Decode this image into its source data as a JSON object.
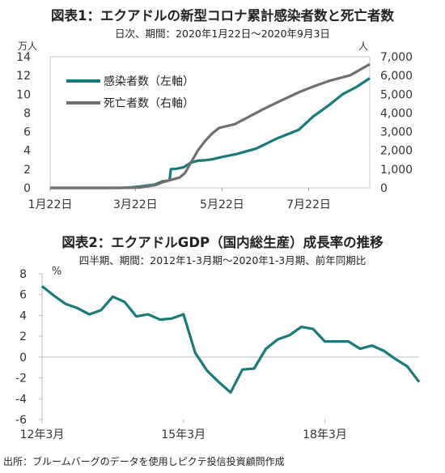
{
  "chart_data": [
    {
      "type": "line",
      "title": "図表1：エクアドルの新型コロナ累計感染者数と死亡者数",
      "subtitle": "日次、期間：2020年1月22日～2020年9月3日",
      "y_unit_left": "万人",
      "y_unit_right": "人",
      "ylim_left": [
        0,
        14
      ],
      "ylim_right": [
        0,
        7000
      ],
      "yticks_left": [
        "0",
        "2",
        "4",
        "6",
        "8",
        "10",
        "12",
        "14"
      ],
      "yticks_right": [
        "0",
        "1,000",
        "2,000",
        "3,000",
        "4,000",
        "5,000",
        "6,000",
        "7,000"
      ],
      "x_range": [
        "2020-01-22",
        "2020-09-03"
      ],
      "xticks": [
        {
          "date": "2020-01-22",
          "label": "1月22日"
        },
        {
          "date": "2020-03-22",
          "label": "3月22日"
        },
        {
          "date": "2020-05-22",
          "label": "5月22日"
        },
        {
          "date": "2020-07-22",
          "label": "7月22日"
        }
      ],
      "legend_position": "top-left",
      "series": [
        {
          "name": "感染者数（左軸）",
          "axis": "left",
          "color": "#1a7a7a",
          "points": [
            [
              "2020-01-22",
              0
            ],
            [
              "2020-03-01",
              0
            ],
            [
              "2020-03-15",
              0.01
            ],
            [
              "2020-03-25",
              0.15
            ],
            [
              "2020-04-05",
              0.37
            ],
            [
              "2020-04-10",
              0.7
            ],
            [
              "2020-04-14",
              0.78
            ],
            [
              "2020-04-15",
              0.8
            ],
            [
              "2020-04-16",
              2.0
            ],
            [
              "2020-04-20",
              2.05
            ],
            [
              "2020-04-25",
              2.2
            ],
            [
              "2020-04-30",
              2.7
            ],
            [
              "2020-05-05",
              2.9
            ],
            [
              "2020-05-10",
              2.95
            ],
            [
              "2020-05-15",
              3.05
            ],
            [
              "2020-05-22",
              3.3
            ],
            [
              "2020-06-01",
              3.6
            ],
            [
              "2020-06-15",
              4.2
            ],
            [
              "2020-06-30",
              5.3
            ],
            [
              "2020-07-15",
              6.2
            ],
            [
              "2020-07-25",
              7.6
            ],
            [
              "2020-08-05",
              8.8
            ],
            [
              "2020-08-15",
              10.0
            ],
            [
              "2020-08-25",
              10.8
            ],
            [
              "2020-09-03",
              11.7
            ]
          ]
        },
        {
          "name": "死亡者数（右軸）",
          "axis": "right",
          "color": "#707070",
          "points": [
            [
              "2020-01-22",
              0
            ],
            [
              "2020-03-10",
              0
            ],
            [
              "2020-03-25",
              20
            ],
            [
              "2020-04-05",
              150
            ],
            [
              "2020-04-10",
              300
            ],
            [
              "2020-04-17",
              450
            ],
            [
              "2020-04-22",
              550
            ],
            [
              "2020-04-26",
              800
            ],
            [
              "2020-04-30",
              1350
            ],
            [
              "2020-05-02",
              1600
            ],
            [
              "2020-05-05",
              2000
            ],
            [
              "2020-05-10",
              2500
            ],
            [
              "2020-05-15",
              2900
            ],
            [
              "2020-05-20",
              3200
            ],
            [
              "2020-05-31",
              3400
            ],
            [
              "2020-06-10",
              3800
            ],
            [
              "2020-06-20",
              4200
            ],
            [
              "2020-07-01",
              4600
            ],
            [
              "2020-07-15",
              5100
            ],
            [
              "2020-07-25",
              5400
            ],
            [
              "2020-08-05",
              5700
            ],
            [
              "2020-08-20",
              6000
            ],
            [
              "2020-09-03",
              6600
            ]
          ]
        }
      ]
    },
    {
      "type": "line",
      "title": "図表2：エクアドルGDP（国内総生産）成長率の推移",
      "subtitle": "四半期、期間：2012年1-3月期～2020年1-3月期、前年同期比",
      "y_unit": "%",
      "ylim": [
        -6,
        8
      ],
      "yticks": [
        "8",
        "6",
        "4",
        "2",
        "0",
        "-2",
        "-4",
        "-6"
      ],
      "xticks": [
        {
          "index": 0,
          "label": "12年3月"
        },
        {
          "index": 12,
          "label": "15年3月"
        },
        {
          "index": 24,
          "label": "18年3月"
        }
      ],
      "series": [
        {
          "color": "#1a7a7a",
          "quarters": [
            "12Q1",
            "12Q2",
            "12Q3",
            "12Q4",
            "13Q1",
            "13Q2",
            "13Q3",
            "13Q4",
            "14Q1",
            "14Q2",
            "14Q3",
            "14Q4",
            "15Q1",
            "15Q2",
            "15Q3",
            "15Q4",
            "16Q1",
            "16Q2",
            "16Q3",
            "16Q4",
            "17Q1",
            "17Q2",
            "17Q3",
            "17Q4",
            "18Q1",
            "18Q2",
            "18Q3",
            "18Q4",
            "19Q1",
            "19Q2",
            "19Q3",
            "19Q4",
            "20Q1"
          ],
          "values": [
            6.8,
            5.9,
            5.1,
            4.7,
            4.1,
            4.5,
            5.8,
            5.3,
            3.9,
            4.1,
            3.6,
            3.7,
            4.1,
            0.4,
            -1.3,
            -2.4,
            -3.4,
            -1.2,
            -1.1,
            0.8,
            1.7,
            2.1,
            2.9,
            2.7,
            1.5,
            1.5,
            1.5,
            0.8,
            1.1,
            0.6,
            -0.2,
            -0.9,
            -2.4
          ]
        }
      ]
    }
  ],
  "source_note": "出所：ブルームバーグのデータを使用しピクテ投信投資顧問作成"
}
